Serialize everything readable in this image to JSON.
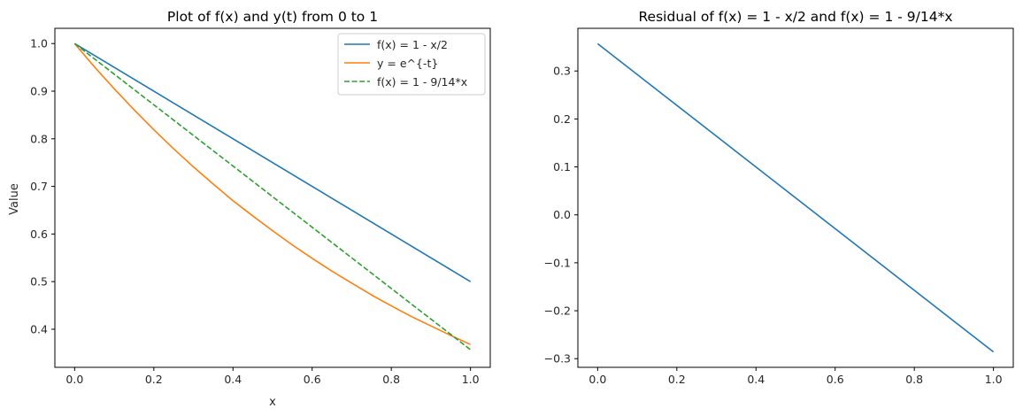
{
  "chart_data": [
    {
      "type": "line",
      "title": "Plot of f(x) and y(t) from 0 to 1",
      "xlabel": "x",
      "ylabel": "Value",
      "xlim": [
        -0.05,
        1.05
      ],
      "ylim": [
        0.32,
        1.032
      ],
      "xticks": [
        0.0,
        0.2,
        0.4,
        0.6,
        0.8,
        1.0
      ],
      "xtick_labels": [
        "0.0",
        "0.2",
        "0.4",
        "0.6",
        "0.8",
        "1.0"
      ],
      "yticks": [
        0.4,
        0.5,
        0.6,
        0.7,
        0.8,
        0.9,
        1.0
      ],
      "ytick_labels": [
        "0.4",
        "0.5",
        "0.6",
        "0.7",
        "0.8",
        "0.9",
        "1.0"
      ],
      "grid": false,
      "legend_position": "top-right",
      "series": [
        {
          "name": "f(x) = 1 - x/2",
          "color": "#1f77b4",
          "dash": "solid",
          "x": [
            0.0,
            1.0
          ],
          "y": [
            1.0,
            0.5
          ]
        },
        {
          "name": "y = e^{-t}",
          "color": "#ff7f0e",
          "dash": "solid",
          "x": [
            0.0,
            0.05,
            0.1,
            0.15,
            0.2,
            0.25,
            0.3,
            0.35,
            0.4,
            0.45,
            0.5,
            0.55,
            0.6,
            0.65,
            0.7,
            0.75,
            0.8,
            0.85,
            0.9,
            0.95,
            1.0
          ],
          "y": [
            1.0,
            0.951,
            0.905,
            0.861,
            0.819,
            0.779,
            0.741,
            0.705,
            0.67,
            0.638,
            0.607,
            0.577,
            0.549,
            0.522,
            0.497,
            0.472,
            0.449,
            0.427,
            0.407,
            0.387,
            0.368
          ]
        },
        {
          "name": "f(x) = 1 - 9/14*x",
          "color": "#2ca02c",
          "dash": "dashed",
          "x": [
            0.0,
            1.0
          ],
          "y": [
            1.0,
            0.357
          ]
        }
      ]
    },
    {
      "type": "line",
      "title": "Residual of f(x) = 1 - x/2 and f(x) = 1 - 9/14*x",
      "xlabel": "",
      "ylabel": "",
      "xlim": [
        -0.05,
        1.05
      ],
      "ylim": [
        -0.318,
        0.389
      ],
      "xticks": [
        0.0,
        0.2,
        0.4,
        0.6,
        0.8,
        1.0
      ],
      "xtick_labels": [
        "0.0",
        "0.2",
        "0.4",
        "0.6",
        "0.8",
        "1.0"
      ],
      "yticks": [
        -0.3,
        -0.2,
        -0.1,
        0.0,
        0.1,
        0.2,
        0.3
      ],
      "ytick_labels": [
        "−0.3",
        "−0.2",
        "−0.1",
        "0.0",
        "0.1",
        "0.2",
        "0.3"
      ],
      "grid": false,
      "legend_position": "none",
      "series": [
        {
          "name": "residual",
          "color": "#1f77b4",
          "dash": "solid",
          "x": [
            0.0,
            1.0
          ],
          "y": [
            0.357,
            -0.286
          ]
        }
      ]
    }
  ]
}
